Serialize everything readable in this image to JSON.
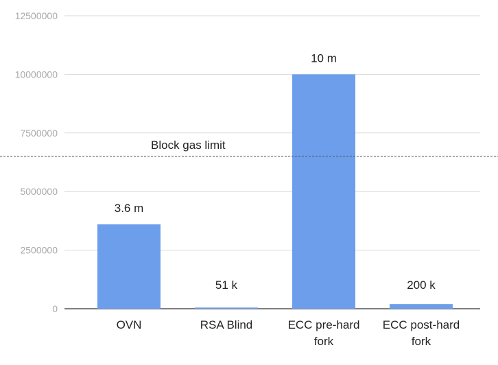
{
  "chart_data": {
    "type": "bar",
    "categories": [
      [
        "OVN"
      ],
      [
        "RSA Blind"
      ],
      [
        "ECC pre-hard",
        "fork"
      ],
      [
        "ECC post-hard",
        "fork"
      ]
    ],
    "values": [
      3600000,
      51000,
      10000000,
      200000
    ],
    "data_labels": [
      "3.6 m",
      "51 k",
      "10 m",
      "200 k"
    ],
    "ylim": [
      0,
      12500000
    ],
    "yticks": [
      {
        "value": 0,
        "label": "0"
      },
      {
        "value": 2500000,
        "label": "2500000"
      },
      {
        "value": 5000000,
        "label": "5000000"
      },
      {
        "value": 7500000,
        "label": "7500000"
      },
      {
        "value": 10000000,
        "label": "10000000"
      },
      {
        "value": 12500000,
        "label": "12500000"
      }
    ],
    "reference_line": {
      "value": 6500000,
      "label": "Block gas limit",
      "style": "dashed"
    },
    "grid": true,
    "legend": "none",
    "colors": {
      "bar": "#6d9eeb",
      "grid": "#d9d9d9",
      "axis": "#333333",
      "ref_line": "#555555"
    }
  }
}
